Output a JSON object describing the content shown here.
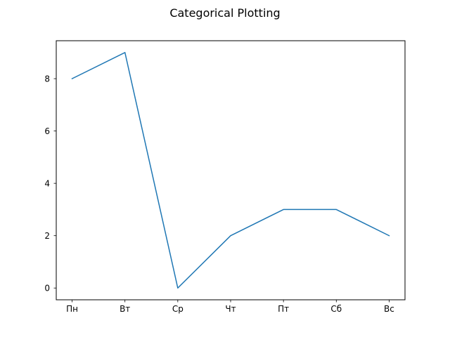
{
  "chart_data": {
    "type": "line",
    "title": "Categorical Plotting",
    "xlabel": "",
    "ylabel": "",
    "categories": [
      "Пн",
      "Вт",
      "Ср",
      "Чт",
      "Пт",
      "Сб",
      "Вс"
    ],
    "series": [
      {
        "values": [
          8,
          9,
          0,
          2,
          3,
          3,
          2
        ]
      }
    ],
    "ylim": [
      -0.45,
      9.45
    ],
    "yticks": [
      0,
      2,
      4,
      6,
      8
    ],
    "ytick_labels": [
      "0",
      "2",
      "4",
      "6",
      "8"
    ],
    "grid": false,
    "legend": "none",
    "colors": {
      "line": "#1f77b4",
      "axes": "#000000",
      "background": "#ffffff"
    }
  }
}
